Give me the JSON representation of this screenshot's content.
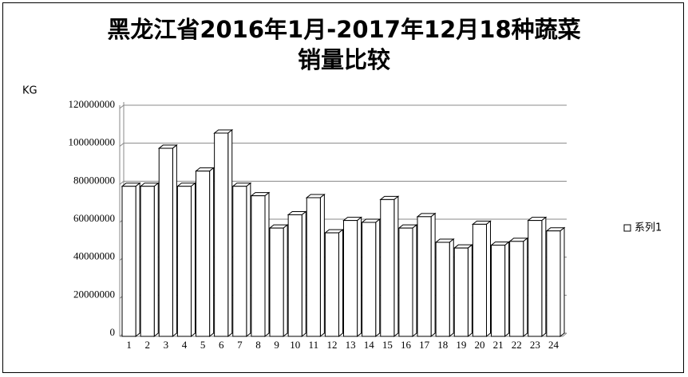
{
  "chart_data": {
    "type": "bar3d",
    "title": "黑龙江省2016年1月-2017年12月18种蔬菜销量比较",
    "y_label": "KG",
    "categories": [
      "1",
      "2",
      "3",
      "4",
      "5",
      "6",
      "7",
      "8",
      "9",
      "10",
      "11",
      "12",
      "13",
      "14",
      "15",
      "16",
      "17",
      "18",
      "19",
      "20",
      "21",
      "22",
      "23",
      "24"
    ],
    "series": [
      {
        "name": "系列1",
        "color": "#ffffff",
        "values": [
          79000000,
          79000000,
          99000000,
          79000000,
          87000000,
          107000000,
          79000000,
          74000000,
          57000000,
          64000000,
          73000000,
          54500000,
          61000000,
          60000000,
          72000000,
          57000000,
          63000000,
          49500000,
          46500000,
          59000000,
          48000000,
          50000000,
          61000000,
          55500000
        ]
      }
    ],
    "ylim": [
      0,
      120000000
    ],
    "yticks": [
      0,
      20000000,
      40000000,
      60000000,
      80000000,
      100000000,
      120000000
    ],
    "grid": true,
    "legend": "right"
  }
}
